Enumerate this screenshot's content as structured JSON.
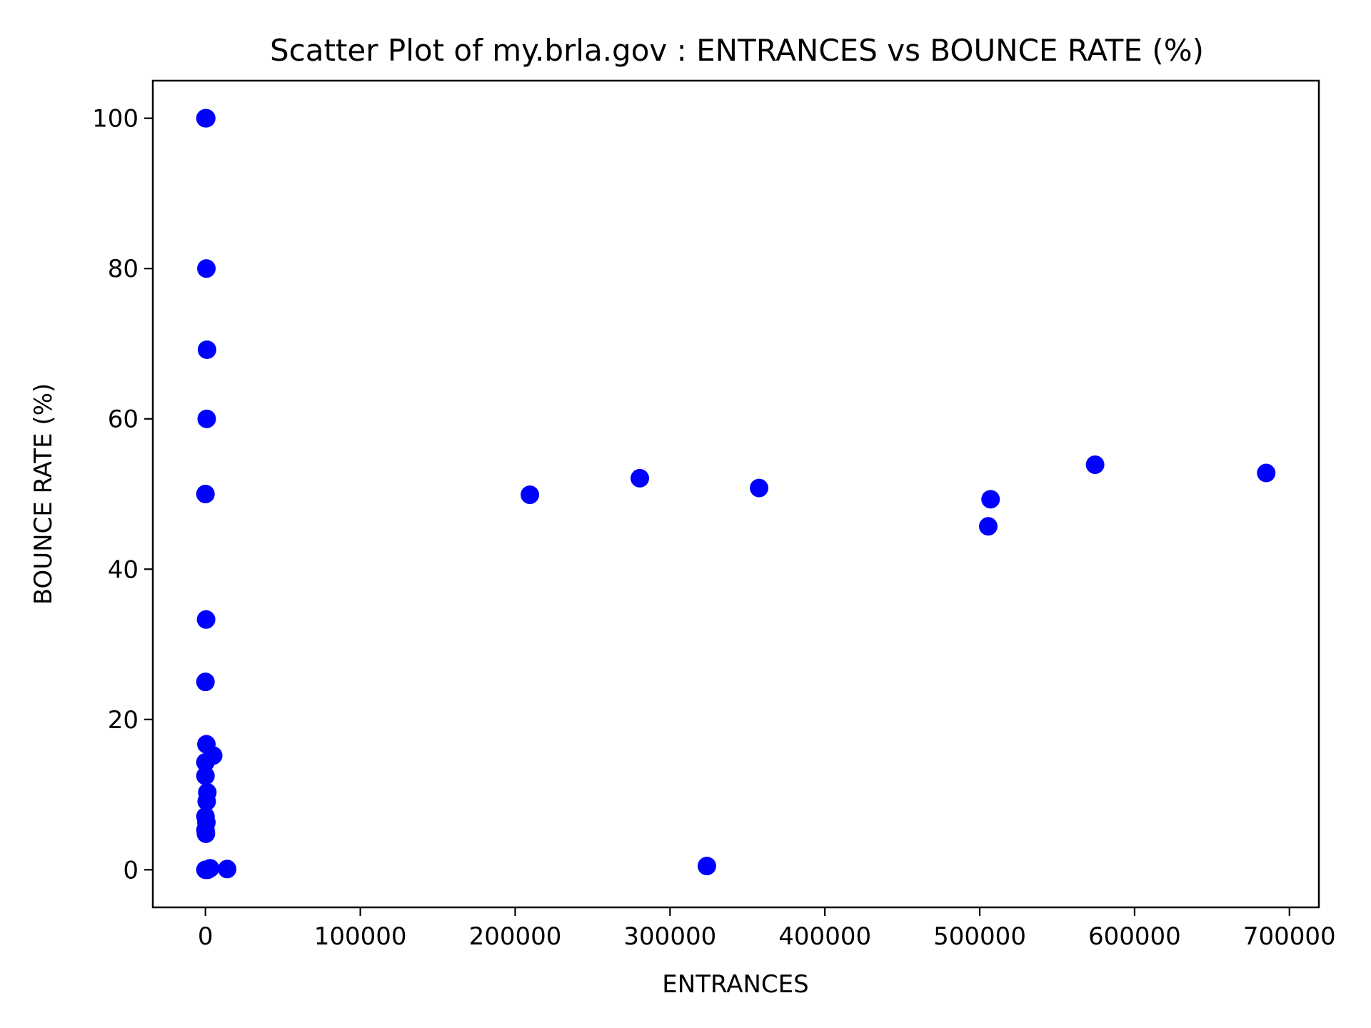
{
  "chart_data": {
    "type": "scatter",
    "title": "Scatter Plot of my.brla.gov : ENTRANCES vs BOUNCE RATE (%)",
    "xlabel": "ENTRANCES",
    "ylabel": "BOUNCE RATE (%)",
    "xlim": [
      -34000,
      719000
    ],
    "ylim": [
      -5,
      105
    ],
    "xticks": [
      0,
      100000,
      200000,
      300000,
      400000,
      500000,
      600000,
      700000
    ],
    "yticks": [
      0,
      20,
      40,
      60,
      80,
      100
    ],
    "grid": false,
    "legend": "none",
    "marker_color": "#0000ff",
    "points": [
      {
        "x": 0,
        "y": 100
      },
      {
        "x": 500,
        "y": 100
      },
      {
        "x": 600,
        "y": 80
      },
      {
        "x": 1000,
        "y": 69.2
      },
      {
        "x": 800,
        "y": 60
      },
      {
        "x": 0,
        "y": 50
      },
      {
        "x": 400,
        "y": 33.3
      },
      {
        "x": 0,
        "y": 25
      },
      {
        "x": 600,
        "y": 16.7
      },
      {
        "x": 5000,
        "y": 15.2
      },
      {
        "x": 0,
        "y": 14.3
      },
      {
        "x": 0,
        "y": 12.5
      },
      {
        "x": 1200,
        "y": 10.3
      },
      {
        "x": 800,
        "y": 9.1
      },
      {
        "x": 0,
        "y": 7.1
      },
      {
        "x": 600,
        "y": 6.3
      },
      {
        "x": 0,
        "y": 5.3
      },
      {
        "x": 300,
        "y": 4.8
      },
      {
        "x": 0,
        "y": 0
      },
      {
        "x": 1500,
        "y": 0
      },
      {
        "x": 3000,
        "y": 0.2
      },
      {
        "x": 14000,
        "y": 0.1
      },
      {
        "x": 209500,
        "y": 49.9
      },
      {
        "x": 280500,
        "y": 52.1
      },
      {
        "x": 323800,
        "y": 0.5
      },
      {
        "x": 357500,
        "y": 50.8
      },
      {
        "x": 505500,
        "y": 45.7
      },
      {
        "x": 507000,
        "y": 49.3
      },
      {
        "x": 574500,
        "y": 53.9
      },
      {
        "x": 685000,
        "y": 52.8
      }
    ]
  }
}
